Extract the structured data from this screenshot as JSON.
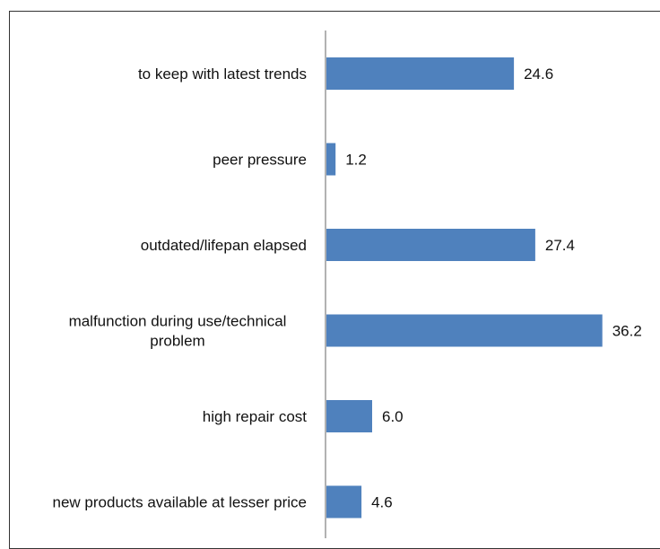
{
  "chart_data": {
    "type": "bar",
    "orientation": "horizontal",
    "categories": [
      [
        "to keep with latest trends"
      ],
      [
        "peer pressure"
      ],
      [
        "outdated/lifepan elapsed"
      ],
      [
        "malfunction during use/technical",
        "problem"
      ],
      [
        "high repair cost"
      ],
      [
        "new products available at lesser price"
      ]
    ],
    "values": [
      24.6,
      1.2,
      27.4,
      36.2,
      6.0,
      4.6
    ],
    "value_labels": [
      "24.6",
      "1.2",
      "27.4",
      "36.2",
      "6.0",
      "4.6"
    ],
    "xlim": [
      0,
      38
    ],
    "grid": false,
    "legend": "none",
    "bar_color": "#4f81bd",
    "axis_color": "#888888"
  }
}
